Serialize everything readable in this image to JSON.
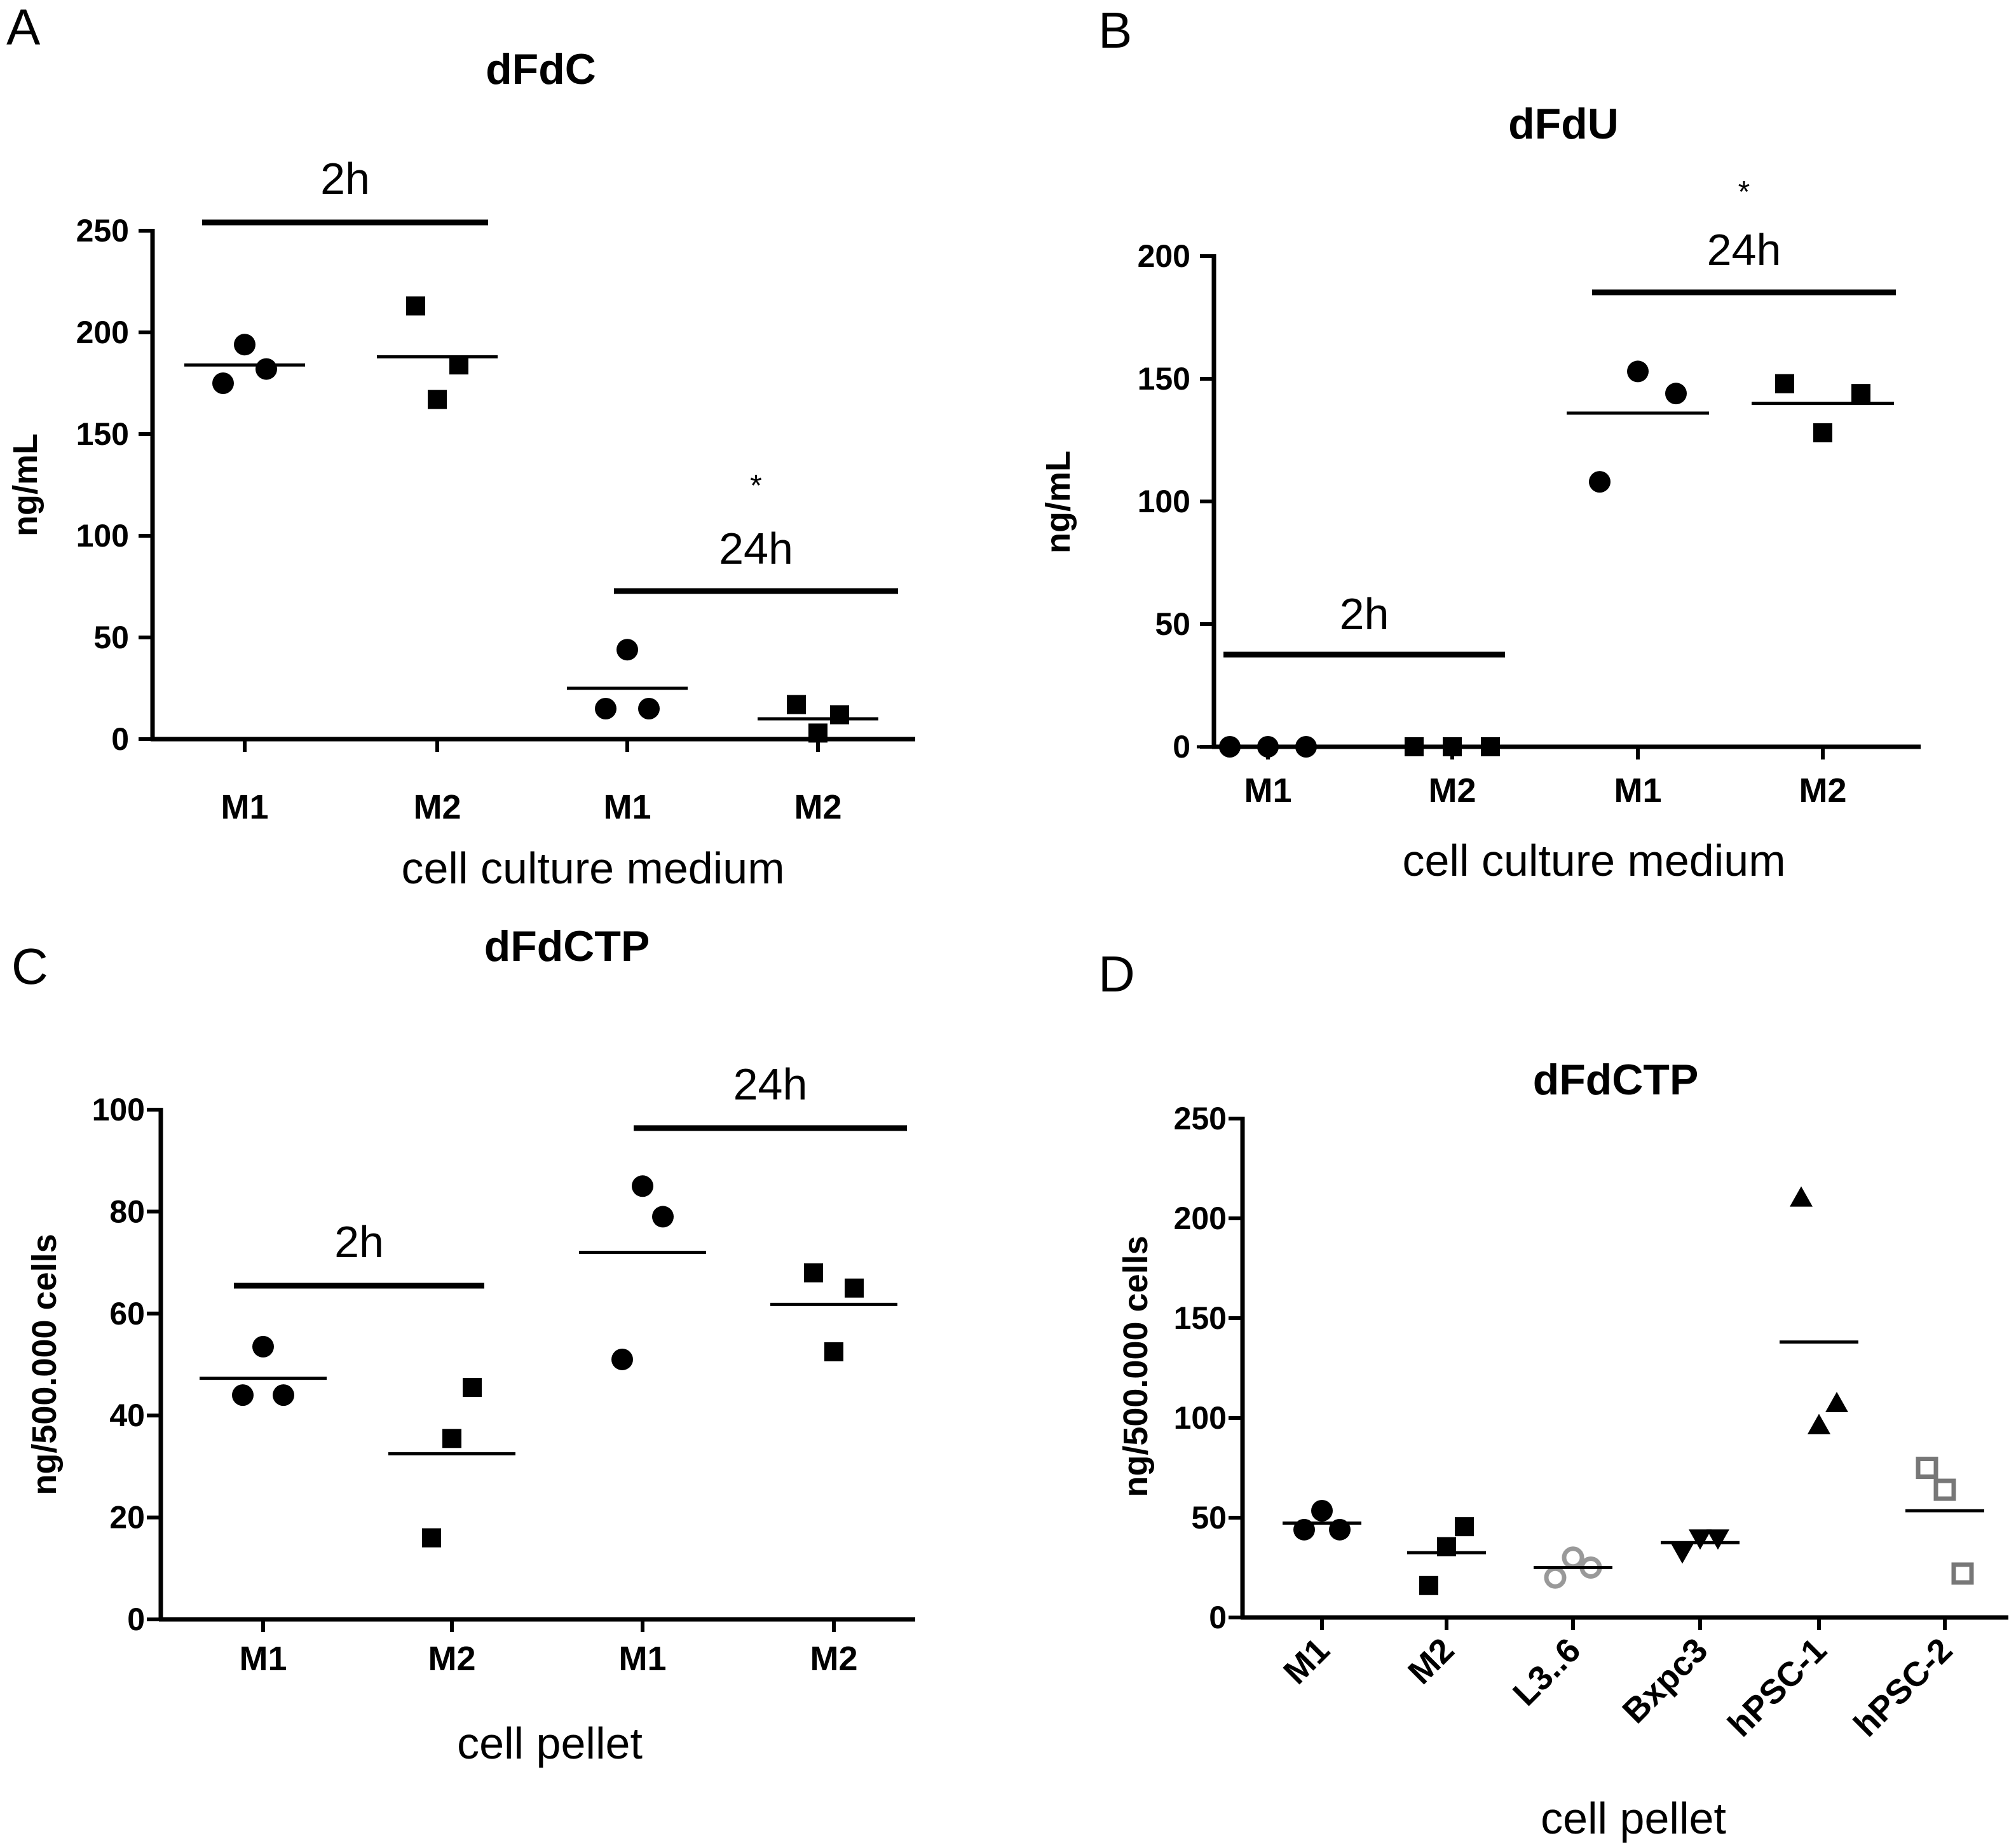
{
  "chart_data": [
    {
      "type": "scatter",
      "panel": "A",
      "title": "dFdC",
      "xlabel": "cell culture medium",
      "ylabel": "ng/mL",
      "ylim": [
        0,
        250
      ],
      "yticks": [
        0,
        50,
        100,
        150,
        200,
        250
      ],
      "categories": [
        "M1",
        "M2",
        "M1",
        "M2"
      ],
      "groups": [
        {
          "label": "2h",
          "categories": [
            0,
            1
          ],
          "star": ""
        },
        {
          "label": "24h",
          "categories": [
            2,
            3
          ],
          "star": "*"
        }
      ],
      "series": [
        {
          "name": "M1 2h",
          "category": 0,
          "marker": "circle",
          "color": "#000000",
          "values": [
            175,
            194,
            182
          ],
          "mean": 184
        },
        {
          "name": "M2 2h",
          "category": 1,
          "marker": "square",
          "color": "#000000",
          "values": [
            213,
            167,
            184
          ],
          "mean": 188
        },
        {
          "name": "M1 24h",
          "category": 2,
          "marker": "circle",
          "color": "#000000",
          "values": [
            15,
            44,
            15
          ],
          "mean": 25
        },
        {
          "name": "M2 24h",
          "category": 3,
          "marker": "square",
          "color": "#000000",
          "values": [
            17,
            3,
            12
          ],
          "mean": 10
        }
      ]
    },
    {
      "type": "scatter",
      "panel": "B",
      "title": "dFdU",
      "xlabel": "cell culture medium",
      "ylabel": "ng/mL",
      "ylim": [
        0,
        200
      ],
      "yticks": [
        0,
        50,
        100,
        150,
        200
      ],
      "categories": [
        "M1",
        "M2",
        "M1",
        "M2"
      ],
      "groups": [
        {
          "label": "2h",
          "categories": [
            0,
            1
          ],
          "star": ""
        },
        {
          "label": "24h",
          "categories": [
            2,
            3
          ],
          "star": "*"
        }
      ],
      "series": [
        {
          "name": "M1 2h",
          "category": 0,
          "marker": "circle",
          "color": "#000000",
          "values": [
            0,
            0,
            0
          ],
          "mean": 0
        },
        {
          "name": "M2 2h",
          "category": 1,
          "marker": "square",
          "color": "#000000",
          "values": [
            0,
            0,
            0
          ],
          "mean": 0
        },
        {
          "name": "M1 24h",
          "category": 2,
          "marker": "circle",
          "color": "#000000",
          "values": [
            108,
            153,
            144
          ],
          "mean": 136
        },
        {
          "name": "M2 24h",
          "category": 3,
          "marker": "square",
          "color": "#000000",
          "values": [
            148,
            128,
            144
          ],
          "mean": 140
        }
      ]
    },
    {
      "type": "scatter",
      "panel": "C",
      "title": "dFdCTP",
      "xlabel": "cell pellet",
      "ylabel": "ng/500.000 cells",
      "ylim": [
        0,
        100
      ],
      "yticks": [
        0,
        20,
        40,
        60,
        80,
        100
      ],
      "categories": [
        "M1",
        "M2",
        "M1",
        "M2"
      ],
      "groups": [
        {
          "label": "2h",
          "categories": [
            0,
            1
          ],
          "star": ""
        },
        {
          "label": "24h",
          "categories": [
            2,
            3
          ],
          "star": ""
        }
      ],
      "series": [
        {
          "name": "M1 2h",
          "category": 0,
          "marker": "circle",
          "color": "#000000",
          "values": [
            44,
            53.5,
            44
          ],
          "mean": 47.3
        },
        {
          "name": "M2 2h",
          "category": 1,
          "marker": "square",
          "color": "#000000",
          "values": [
            16,
            35.5,
            45.5
          ],
          "mean": 32.5
        },
        {
          "name": "M1 24h",
          "category": 2,
          "marker": "circle",
          "color": "#000000",
          "values": [
            51,
            85,
            79
          ],
          "mean": 72
        },
        {
          "name": "M2 24h",
          "category": 3,
          "marker": "square",
          "color": "#000000",
          "values": [
            68,
            52.5,
            65
          ],
          "mean": 61.8
        }
      ]
    },
    {
      "type": "scatter",
      "panel": "D",
      "title": "dFdCTP",
      "xlabel": "cell pellet",
      "ylabel": "ng/500.000 cells",
      "ylim": [
        0,
        250
      ],
      "yticks": [
        0,
        50,
        100,
        150,
        200,
        250
      ],
      "categories": [
        "M1",
        "M2",
        "L3..6",
        "Bxpc3",
        "hPSC-1",
        "hPSC-2"
      ],
      "groups": [],
      "series": [
        {
          "name": "M1",
          "category": 0,
          "marker": "circle",
          "color": "#000000",
          "values": [
            44,
            53.5,
            44
          ],
          "mean": 47.3
        },
        {
          "name": "M2",
          "category": 1,
          "marker": "square",
          "color": "#000000",
          "values": [
            16,
            35.5,
            45.5
          ],
          "mean": 32.5
        },
        {
          "name": "L3..6",
          "category": 2,
          "marker": "circle-open",
          "color": "#999999",
          "values": [
            20,
            30,
            25
          ],
          "mean": 25
        },
        {
          "name": "Bxpc3",
          "category": 3,
          "marker": "triangle-down",
          "color": "#000000",
          "values": [
            33,
            40,
            40
          ],
          "mean": 37.5
        },
        {
          "name": "hPSC-1",
          "category": 4,
          "marker": "triangle-up",
          "color": "#000000",
          "values": [
            210,
            96,
            107
          ],
          "mean": 138
        },
        {
          "name": "hPSC-2",
          "category": 5,
          "marker": "square-open",
          "color": "#777777",
          "values": [
            75,
            64,
            22
          ],
          "mean": 53.5
        }
      ]
    }
  ]
}
